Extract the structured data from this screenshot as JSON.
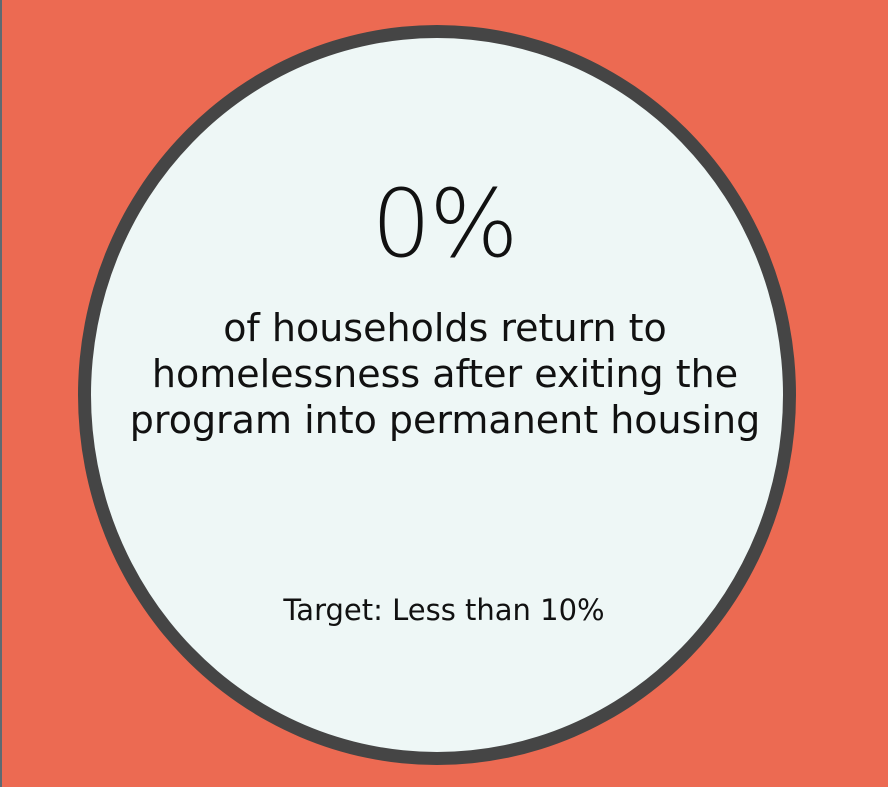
{
  "stat": {
    "value": "0%",
    "description": "of households return to homelessness after exiting the program into permanent housing",
    "target": "Target: Less than 10%"
  },
  "colors": {
    "background": "#ec6a52",
    "circle_fill": "#eef7f6",
    "circle_border": "#454545",
    "text": "#111111"
  }
}
